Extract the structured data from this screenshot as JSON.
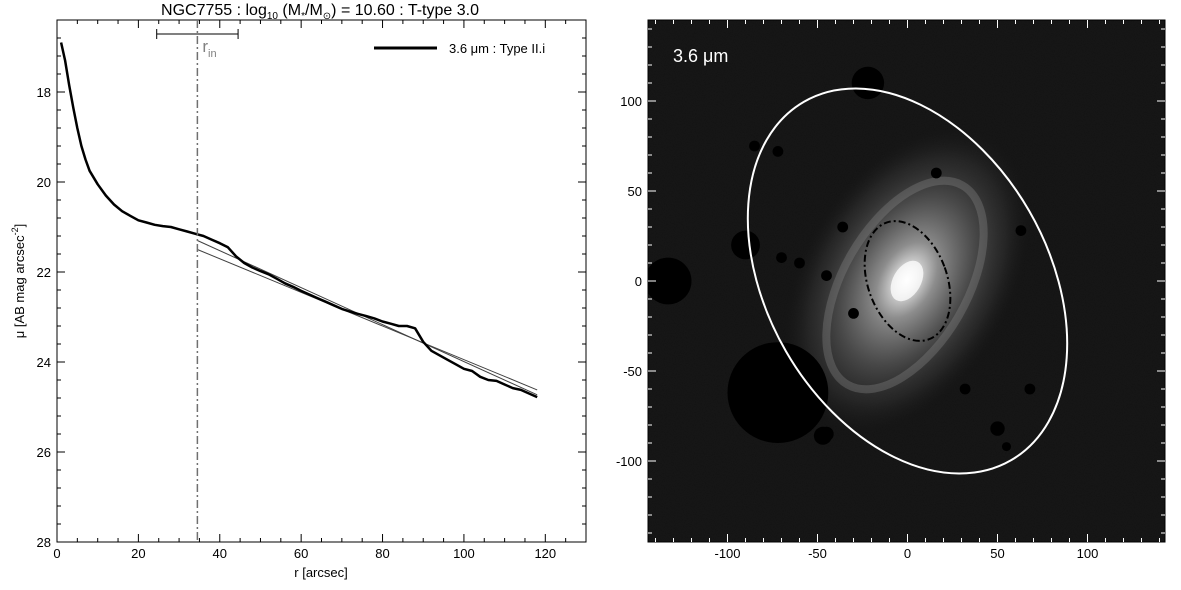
{
  "chart_data": [
    {
      "type": "line",
      "title_parts": {
        "galaxy": "NGC7755 : log",
        "log_sub": "10",
        "mass_open": " (M",
        "mass_sub": "*",
        "slash": "/M",
        "sun_sub": "⊙",
        "rest": ") = 10.60 : T-type 3.0"
      },
      "xlabel": "r [arcsec]",
      "ylabel_parts": {
        "main": "μ [AB mag arcsec",
        "sup": "-2",
        "close": "]"
      },
      "xlim": [
        0,
        130
      ],
      "ylim": [
        28,
        16.4
      ],
      "y_inverted": true,
      "xticks": [
        0,
        20,
        40,
        60,
        80,
        100,
        120
      ],
      "yticks": [
        18,
        20,
        22,
        24,
        26,
        28
      ],
      "legend": {
        "label": "3.6 μm : Type II.i",
        "position": "top-right"
      },
      "annotation": {
        "text": "r",
        "sub": "in"
      },
      "r_in": 34.5,
      "r_in_range": [
        24.5,
        44.5
      ],
      "profile": {
        "name": "3.6 μm : Type II.i",
        "x": [
          1.0,
          2.0,
          3.0,
          4.0,
          5.0,
          6.0,
          7.0,
          8.0,
          10.0,
          12.0,
          14.0,
          16.0,
          18.0,
          20.0,
          22.0,
          24.0,
          26.0,
          28.0,
          30.0,
          32.0,
          34.0,
          36.0,
          38.0,
          40.0,
          42.0,
          44.0,
          46.0,
          48.0,
          50.0,
          52.0,
          54.0,
          56.0,
          58.0,
          60.0,
          62.0,
          64.0,
          66.0,
          68.0,
          70.0,
          72.0,
          74.0,
          76.0,
          78.0,
          80.0,
          82.0,
          84.0,
          86.0,
          88.0,
          90.0,
          92.0,
          94.0,
          96.0,
          98.0,
          100.0,
          102.0,
          104.0,
          106.0,
          108.0,
          110.0,
          112.0,
          114.0,
          116.0,
          118.0
        ],
        "y": [
          16.9,
          17.3,
          17.85,
          18.35,
          18.8,
          19.2,
          19.5,
          19.75,
          20.05,
          20.3,
          20.5,
          20.65,
          20.75,
          20.85,
          20.9,
          20.95,
          20.98,
          21.0,
          21.05,
          21.1,
          21.15,
          21.2,
          21.28,
          21.36,
          21.45,
          21.65,
          21.8,
          21.9,
          21.98,
          22.05,
          22.15,
          22.25,
          22.33,
          22.42,
          22.5,
          22.58,
          22.66,
          22.74,
          22.82,
          22.88,
          22.93,
          22.98,
          23.03,
          23.1,
          23.15,
          23.2,
          23.2,
          23.25,
          23.55,
          23.75,
          23.85,
          23.95,
          24.05,
          24.15,
          24.2,
          24.33,
          24.4,
          24.42,
          24.5,
          24.58,
          24.62,
          24.7,
          24.78
        ],
        "err_lo": [
          16.9,
          17.3,
          17.85,
          18.35,
          18.8,
          19.2,
          19.5,
          19.75,
          20.05,
          20.3,
          20.5,
          20.65,
          20.75,
          20.85,
          20.9,
          20.95,
          20.98,
          21.0,
          21.05,
          21.1,
          21.15,
          21.2,
          21.28,
          21.36,
          21.45,
          21.65,
          21.8,
          21.9,
          21.98,
          22.05,
          22.15,
          22.25,
          22.33,
          22.42,
          22.5,
          22.58,
          22.66,
          22.74,
          22.82,
          22.88,
          22.93,
          22.98,
          23.03,
          23.1,
          23.15,
          23.2,
          23.2,
          23.25,
          23.55,
          23.75,
          23.85,
          23.95,
          24.05,
          24.15,
          24.2,
          24.33,
          24.4,
          24.42,
          24.5,
          24.58,
          24.62,
          24.7,
          24.78
        ],
        "err_hi": [
          16.9,
          17.3,
          17.85,
          18.35,
          18.8,
          19.2,
          19.5,
          19.75,
          20.05,
          20.3,
          20.5,
          20.65,
          20.75,
          20.85,
          20.9,
          20.95,
          20.98,
          21.0,
          21.05,
          21.1,
          21.15,
          21.2,
          21.28,
          21.36,
          21.45,
          21.65,
          21.8,
          21.9,
          21.98,
          22.05,
          22.15,
          22.25,
          22.33,
          22.42,
          22.5,
          22.58,
          22.66,
          22.74,
          22.82,
          22.88,
          22.93,
          22.98,
          23.03,
          23.1,
          23.15,
          23.2,
          23.2,
          23.25,
          23.55,
          23.75,
          23.85,
          23.95,
          24.05,
          24.15,
          24.2,
          24.33,
          24.4,
          24.42,
          24.5,
          24.58,
          24.62,
          24.7,
          24.78
        ]
      },
      "fits": [
        {
          "x": [
            34.5,
            118.0
          ],
          "y": [
            21.3,
            24.73
          ]
        },
        {
          "x": [
            34.5,
            118.0
          ],
          "y": [
            21.5,
            24.62
          ]
        }
      ],
      "colors": {
        "profile": "#000000",
        "fit": "#404040",
        "band": "#c0c0c0",
        "rin_line": "#707070",
        "rin_label": "#808080"
      }
    },
    {
      "type": "image",
      "label": "3.6 μm",
      "xlim": [
        -145,
        145
      ],
      "ylim": [
        -145,
        145
      ],
      "xticks": [
        -100,
        -50,
        0,
        50,
        100
      ],
      "yticks": [
        -100,
        -50,
        0,
        50,
        100
      ],
      "center": [
        0,
        0
      ],
      "outer_ellipse": {
        "semi_major": 115,
        "semi_minor": 78,
        "tilt_deg": 30,
        "color": "#ffffff"
      },
      "inner_ellipse": {
        "semi_major": 34.5,
        "semi_minor": 22,
        "tilt_deg": 20,
        "color": "#000000"
      },
      "masked_sources": [
        {
          "x": -72,
          "y": -62,
          "r": 28
        },
        {
          "x": -133,
          "y": 0,
          "r": 13
        },
        {
          "x": -90,
          "y": 20,
          "r": 8
        },
        {
          "x": -22,
          "y": 110,
          "r": 9
        },
        {
          "x": -70,
          "y": 13,
          "r": 3
        },
        {
          "x": -60,
          "y": 10,
          "r": 3
        },
        {
          "x": -45,
          "y": 3,
          "r": 3
        },
        {
          "x": -36,
          "y": 30,
          "r": 3
        },
        {
          "x": -30,
          "y": -18,
          "r": 3
        },
        {
          "x": 16,
          "y": 60,
          "r": 3
        },
        {
          "x": 32,
          "y": -60,
          "r": 3
        },
        {
          "x": 50,
          "y": -82,
          "r": 4
        },
        {
          "x": -47,
          "y": -86,
          "r": 5
        },
        {
          "x": -60,
          "y": -80,
          "r": 4
        },
        {
          "x": -85,
          "y": 75,
          "r": 3
        },
        {
          "x": 55,
          "y": -92,
          "r": 2.5
        },
        {
          "x": -72,
          "y": 72,
          "r": 3
        },
        {
          "x": -45,
          "y": -85,
          "r": 4
        },
        {
          "x": 63,
          "y": 28,
          "r": 3
        },
        {
          "x": 68,
          "y": -60,
          "r": 3
        }
      ]
    }
  ]
}
